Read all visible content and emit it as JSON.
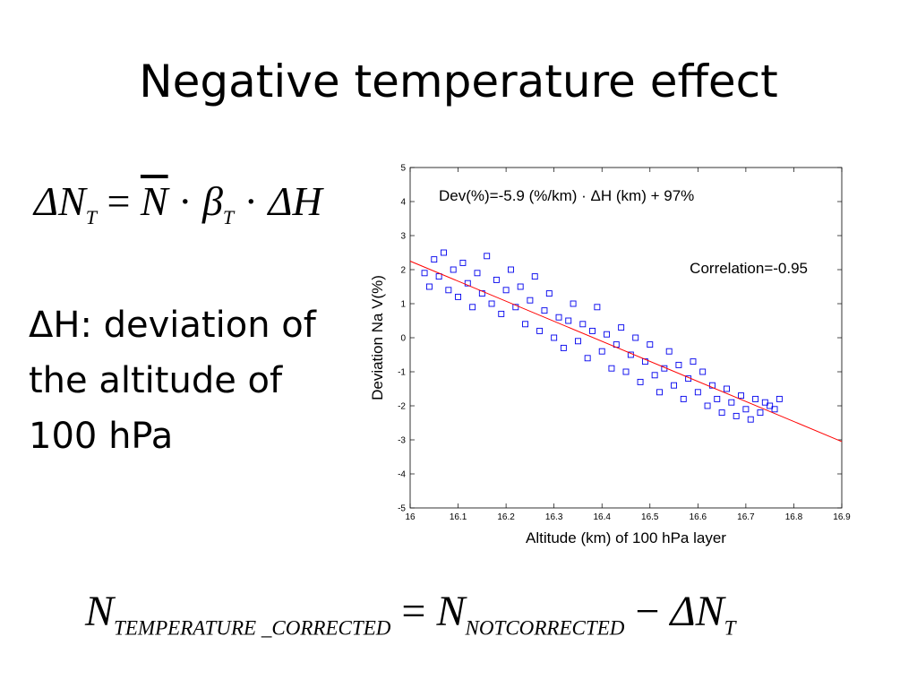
{
  "title": "Negative temperature effect",
  "formula_top": {
    "lhs": "ΔN",
    "lhs_sub": "T",
    "eq": "=",
    "n_bar": "N",
    "dot": "·",
    "beta": "β",
    "beta_sub": "T",
    "dh": "ΔH"
  },
  "body_lines": [
    "ΔH: deviation of",
    "the altitude of",
    "100 hPa"
  ],
  "formula_bottom": {
    "n": "N",
    "sub1": "TEMPERATURE _CORRECTED",
    "eq": "=",
    "n2": "N",
    "sub2": "NOTCORRECTED",
    "minus": "−",
    "dn": "ΔN",
    "sub3": "T"
  },
  "chart_data": {
    "type": "scatter",
    "xlabel": "Altitude (km) of 100 hPa layer",
    "ylabel": "Deviation Na V(%)",
    "xlim": [
      16,
      16.9
    ],
    "ylim": [
      -5,
      5
    ],
    "xticks": [
      16,
      16.1,
      16.2,
      16.3,
      16.4,
      16.5,
      16.6,
      16.7,
      16.8,
      16.9
    ],
    "yticks": [
      -5,
      -4,
      -3,
      -2,
      -1,
      0,
      1,
      2,
      3,
      4,
      5
    ],
    "marker_color": "#0000ee",
    "fit_color": "#ff0000",
    "fit_line": {
      "slope_per_km": -5.9,
      "x_range": [
        16,
        16.9
      ],
      "y_at_16": 2.25,
      "y_at_16_9": -3.05
    },
    "annotation": "Dev(%)=-5.9 (%/km) · ΔH (km) + 97%",
    "correlation_text": "Correlation=-0.95",
    "points": [
      [
        16.03,
        1.9
      ],
      [
        16.04,
        1.5
      ],
      [
        16.05,
        2.3
      ],
      [
        16.06,
        1.8
      ],
      [
        16.07,
        2.5
      ],
      [
        16.08,
        1.4
      ],
      [
        16.09,
        2.0
      ],
      [
        16.1,
        1.2
      ],
      [
        16.11,
        2.2
      ],
      [
        16.12,
        1.6
      ],
      [
        16.13,
        0.9
      ],
      [
        16.14,
        1.9
      ],
      [
        16.15,
        1.3
      ],
      [
        16.16,
        2.4
      ],
      [
        16.17,
        1.0
      ],
      [
        16.18,
        1.7
      ],
      [
        16.19,
        0.7
      ],
      [
        16.2,
        1.4
      ],
      [
        16.21,
        2.0
      ],
      [
        16.22,
        0.9
      ],
      [
        16.23,
        1.5
      ],
      [
        16.24,
        0.4
      ],
      [
        16.25,
        1.1
      ],
      [
        16.26,
        1.8
      ],
      [
        16.27,
        0.2
      ],
      [
        16.28,
        0.8
      ],
      [
        16.29,
        1.3
      ],
      [
        16.3,
        0.0
      ],
      [
        16.31,
        0.6
      ],
      [
        16.32,
        -0.3
      ],
      [
        16.33,
        0.5
      ],
      [
        16.34,
        1.0
      ],
      [
        16.35,
        -0.1
      ],
      [
        16.36,
        0.4
      ],
      [
        16.37,
        -0.6
      ],
      [
        16.38,
        0.2
      ],
      [
        16.39,
        0.9
      ],
      [
        16.4,
        -0.4
      ],
      [
        16.41,
        0.1
      ],
      [
        16.42,
        -0.9
      ],
      [
        16.43,
        -0.2
      ],
      [
        16.44,
        0.3
      ],
      [
        16.45,
        -1.0
      ],
      [
        16.46,
        -0.5
      ],
      [
        16.47,
        0.0
      ],
      [
        16.48,
        -1.3
      ],
      [
        16.49,
        -0.7
      ],
      [
        16.5,
        -0.2
      ],
      [
        16.51,
        -1.1
      ],
      [
        16.52,
        -1.6
      ],
      [
        16.53,
        -0.9
      ],
      [
        16.54,
        -0.4
      ],
      [
        16.55,
        -1.4
      ],
      [
        16.56,
        -0.8
      ],
      [
        16.57,
        -1.8
      ],
      [
        16.58,
        -1.2
      ],
      [
        16.59,
        -0.7
      ],
      [
        16.6,
        -1.6
      ],
      [
        16.61,
        -1.0
      ],
      [
        16.62,
        -2.0
      ],
      [
        16.63,
        -1.4
      ],
      [
        16.64,
        -1.8
      ],
      [
        16.65,
        -2.2
      ],
      [
        16.66,
        -1.5
      ],
      [
        16.67,
        -1.9
      ],
      [
        16.68,
        -2.3
      ],
      [
        16.69,
        -1.7
      ],
      [
        16.7,
        -2.1
      ],
      [
        16.71,
        -2.4
      ],
      [
        16.72,
        -1.8
      ],
      [
        16.73,
        -2.2
      ],
      [
        16.74,
        -1.9
      ],
      [
        16.75,
        -2.0
      ],
      [
        16.76,
        -2.1
      ],
      [
        16.77,
        -1.8
      ]
    ]
  }
}
